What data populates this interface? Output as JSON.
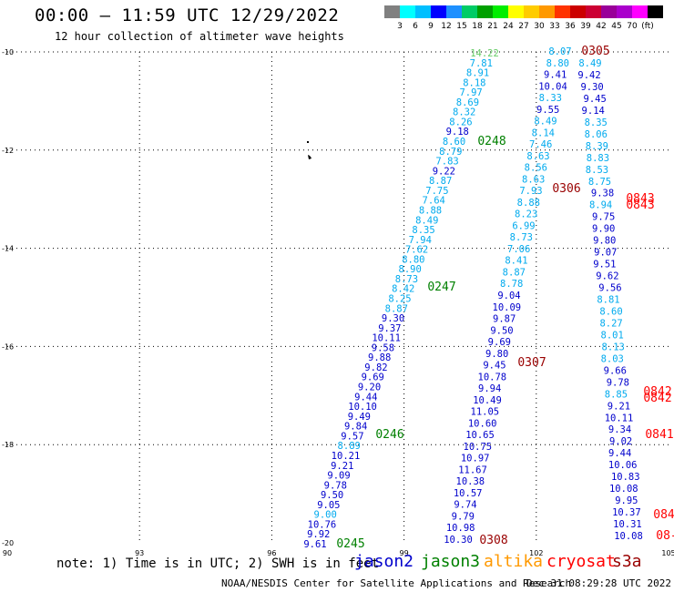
{
  "header": {
    "title": "00:00 – 11:59 UTC 12/29/2022",
    "subtitle": "12 hour collection of altimeter wave heights"
  },
  "legend": {
    "unit": "(ft)",
    "colors": [
      "#808080",
      "#00ffff",
      "#00bfff",
      "#0000ff",
      "#1e90ff",
      "#00cc66",
      "#00a000",
      "#00ee00",
      "#ffff00",
      "#ffcc00",
      "#ff9900",
      "#ff3300",
      "#cc0000",
      "#cc0033",
      "#990099",
      "#aa00cc",
      "#ff00ff",
      "#000000"
    ],
    "labels": [
      "3",
      "6",
      "9",
      "12",
      "15",
      "18",
      "21",
      "24",
      "27",
      "30",
      "33",
      "36",
      "39",
      "42",
      "45",
      "70"
    ]
  },
  "axes": {
    "x_ticks": [
      "90",
      "93",
      "96",
      "99",
      "102",
      "105"
    ],
    "y_ticks": [
      "-10",
      "-12",
      "-14",
      "-16",
      "-18",
      "-20"
    ]
  },
  "map_data": {
    "satellites": [
      {
        "name": "jason2",
        "color": "#0000cc"
      },
      {
        "name": "jason3",
        "color": "#008000"
      },
      {
        "name": "altika",
        "color": "#ff9900"
      },
      {
        "name": "cryosat",
        "color": "#ff0000"
      },
      {
        "name": "s3a",
        "color": "#990000"
      }
    ],
    "track_a": {
      "color": "#0000cc",
      "values": [
        "9.61",
        "9.92",
        "10.76",
        "9.00",
        "9.05",
        "9.50",
        "9.78",
        "9.09",
        "9.21",
        "10.21",
        "8.89",
        "9.57",
        "9.84",
        "9.49",
        "10.10",
        "9.44",
        "9.20",
        "9.69",
        "9.82",
        "9.88",
        "9.58",
        "10.11",
        "9.37",
        "9.30",
        "8.87",
        "8.25",
        "8.42",
        "8.73",
        "8.90",
        "8.80",
        "7.62",
        "7.94",
        "8.35",
        "8.49",
        "8.88",
        "7.64",
        "7.75",
        "8.87",
        "9.22",
        "7.83",
        "8.79",
        "8.60",
        "9.18",
        "8.26",
        "8.32",
        "8.69",
        "7.97",
        "8.18",
        "8.91",
        "7.81",
        "14.22"
      ]
    },
    "track_b": {
      "color": "#0000cc",
      "values": [
        "10.30",
        "10.98",
        "9.79",
        "9.74",
        "10.57",
        "10.38",
        "11.67",
        "10.97",
        "10.75",
        "10.65",
        "10.60",
        "11.05",
        "10.49",
        "9.94",
        "10.78",
        "9.45",
        "9.80",
        "9.69",
        "9.50",
        "9.87",
        "10.09",
        "9.04",
        "8.78",
        "8.87",
        "8.41",
        "7.06",
        "8.73",
        "6.99",
        "8.23",
        "8.88",
        "7.93",
        "8.63",
        "8.56",
        "8.63",
        "7.46",
        "8.14",
        "8.49",
        "9.55",
        "8.33",
        "10.04",
        "9.41",
        "8.80",
        "8.07"
      ]
    },
    "track_c": {
      "color": "#0000cc",
      "values": [
        "8.49",
        "9.42",
        "9.30",
        "9.45",
        "9.14",
        "8.35",
        "8.06",
        "8.39",
        "8.83",
        "8.53",
        "8.75",
        "9.38",
        "8.94",
        "9.75",
        "9.90",
        "9.80",
        "9.07",
        "9.51",
        "9.62",
        "9.56",
        "8.81",
        "8.60",
        "8.27",
        "8.01",
        "8.13",
        "8.03",
        "9.66",
        "9.78",
        "8.85",
        "9.21",
        "10.11",
        "9.34",
        "9.02",
        "9.44",
        "10.06",
        "10.83",
        "10.08",
        "9.95",
        "10.37",
        "10.31",
        "10.08"
      ]
    },
    "pass_times": [
      {
        "label": "0245",
        "color": "#008000"
      },
      {
        "label": "0246",
        "color": "#008000"
      },
      {
        "label": "0247",
        "color": "#008000"
      },
      {
        "label": "0248",
        "color": "#008000"
      },
      {
        "label": "0305",
        "color": "#990000"
      },
      {
        "label": "0306",
        "color": "#990000"
      },
      {
        "label": "0307",
        "color": "#990000"
      },
      {
        "label": "0308",
        "color": "#990000"
      },
      {
        "label": "0843",
        "color": "#ff0000"
      },
      {
        "label": "0843",
        "color": "#ff0000"
      },
      {
        "label": "0842",
        "color": "#ff0000"
      },
      {
        "label": "0842",
        "color": "#ff0000"
      },
      {
        "label": "0841",
        "color": "#ff0000"
      },
      {
        "label": "084",
        "color": "#ff0000"
      },
      {
        "label": "08-",
        "color": "#ff0000"
      }
    ]
  },
  "footer": {
    "note": "note:  1) Time is in UTC; 2) SWH is in feet",
    "credit": "NOAA/NESDIS Center for Satellite Applications and Research",
    "timestamp": "Dec 31 08:29:28 UTC 2022"
  }
}
